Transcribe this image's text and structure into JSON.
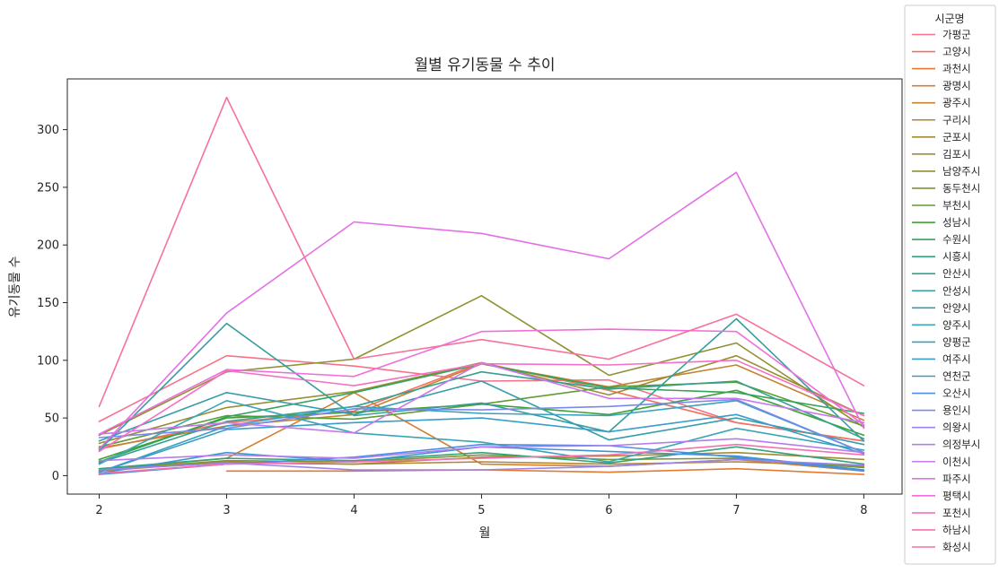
{
  "chart_data": {
    "type": "line",
    "title": "월별 유기동물 수 추이",
    "xlabel": "월",
    "ylabel": "유기동물 수",
    "x": [
      2,
      3,
      4,
      5,
      6,
      7,
      8
    ],
    "xlim": [
      1.75,
      8.3
    ],
    "ylim": [
      -16,
      344
    ],
    "xticks": [
      2,
      3,
      4,
      5,
      6,
      7,
      8
    ],
    "yticks": [
      0,
      50,
      100,
      150,
      200,
      250,
      300
    ],
    "grid": false,
    "legend": {
      "title": "시군명",
      "placement": "outside-right"
    },
    "series": [
      {
        "name": "가평군",
        "color": "#f77189",
        "values": [
          47,
          104,
          95,
          82,
          83,
          46,
          30
        ]
      },
      {
        "name": "고양시",
        "color": "#f2735d",
        "values": [
          23,
          46,
          56,
          98,
          74,
          46,
          30
        ]
      },
      {
        "name": "과천시",
        "color": "#e47a32",
        "values": [
          null,
          4,
          4,
          5,
          3,
          6,
          1
        ]
      },
      {
        "name": "광명시",
        "color": "#d47e32",
        "values": [
          5,
          15,
          72,
          10,
          8,
          14,
          4
        ]
      },
      {
        "name": "광주시",
        "color": "#c48332",
        "values": [
          24,
          43,
          53,
          97,
          77,
          96,
          48
        ]
      },
      {
        "name": "구리시",
        "color": "#b48632",
        "values": [
          4,
          12,
          10,
          12,
          10,
          12,
          8
        ]
      },
      {
        "name": "군포시",
        "color": "#a48a32",
        "values": [
          5,
          11,
          10,
          16,
          17,
          20,
          14
        ]
      },
      {
        "name": "김포시",
        "color": "#9a8d32",
        "values": [
          28,
          59,
          73,
          98,
          70,
          104,
          52
        ]
      },
      {
        "name": "남양주시",
        "color": "#8e9132",
        "values": [
          35,
          90,
          101,
          156,
          87,
          115,
          42
        ]
      },
      {
        "name": "동두천시",
        "color": "#7b9632",
        "values": [
          5,
          13,
          12,
          18,
          14,
          15,
          7
        ]
      },
      {
        "name": "부천시",
        "color": "#5f9c32",
        "values": [
          25,
          52,
          49,
          62,
          77,
          81,
          43
        ]
      },
      {
        "name": "성남시",
        "color": "#3ba332",
        "values": [
          14,
          50,
          55,
          62,
          53,
          74,
          35
        ]
      },
      {
        "name": "수원시",
        "color": "#32a45d",
        "values": [
          12,
          51,
          72,
          97,
          76,
          72,
          54
        ]
      },
      {
        "name": "시흥시",
        "color": "#34a27a",
        "values": [
          6,
          15,
          13,
          20,
          11,
          25,
          10
        ]
      },
      {
        "name": "안산시",
        "color": "#35a08f",
        "values": [
          11,
          47,
          60,
          90,
          75,
          82,
          32
        ]
      },
      {
        "name": "안성시",
        "color": "#369ea0",
        "values": [
          22,
          132,
          52,
          63,
          38,
          136,
          30
        ]
      },
      {
        "name": "안양시",
        "color": "#379dac",
        "values": [
          30,
          72,
          53,
          82,
          31,
          50,
          27
        ]
      },
      {
        "name": "양주시",
        "color": "#38a5b8",
        "values": [
          10,
          65,
          37,
          29,
          12,
          41,
          22
        ]
      },
      {
        "name": "양평군",
        "color": "#39a1bf",
        "values": [
          3,
          43,
          60,
          54,
          52,
          65,
          20
        ]
      },
      {
        "name": "여주시",
        "color": "#3a9dc8",
        "values": [
          3,
          40,
          46,
          50,
          38,
          53,
          19
        ]
      },
      {
        "name": "연천군",
        "color": "#3b97d2",
        "values": [
          2,
          20,
          12,
          25,
          21,
          17,
          5
        ]
      },
      {
        "name": "오산시",
        "color": "#4a8fe0",
        "values": [
          1,
          10,
          16,
          27,
          26,
          16,
          4
        ]
      },
      {
        "name": "용인시",
        "color": "#7a89ec",
        "values": [
          33,
          41,
          58,
          57,
          60,
          66,
          20
        ]
      },
      {
        "name": "의왕시",
        "color": "#9b82ef",
        "values": [
          5,
          11,
          5,
          5,
          8,
          14,
          9
        ]
      },
      {
        "name": "의정부시",
        "color": "#b47cf0",
        "values": [
          13,
          18,
          15,
          25,
          26,
          32,
          20
        ]
      },
      {
        "name": "이천시",
        "color": "#c977ee",
        "values": [
          36,
          46,
          37,
          98,
          67,
          67,
          46
        ]
      },
      {
        "name": "파주시",
        "color": "#e46fe6",
        "values": [
          23,
          141,
          220,
          210,
          188,
          263,
          41
        ]
      },
      {
        "name": "평택시",
        "color": "#f06edb",
        "values": [
          36,
          92,
          86,
          125,
          127,
          125,
          44
        ]
      },
      {
        "name": "포천시",
        "color": "#f56fc8",
        "values": [
          21,
          91,
          78,
          97,
          96,
          100,
          52
        ]
      },
      {
        "name": "하남시",
        "color": "#f670b0",
        "values": [
          2,
          10,
          12,
          15,
          18,
          27,
          18
        ]
      },
      {
        "name": "화성시",
        "color": "#f77199",
        "values": [
          60,
          328,
          101,
          118,
          101,
          140,
          78
        ]
      }
    ]
  }
}
